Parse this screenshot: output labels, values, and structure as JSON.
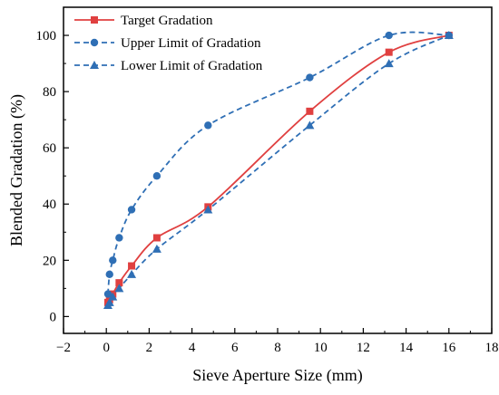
{
  "chart_data": {
    "type": "line",
    "xlabel": "Sieve Aperture Size (mm)",
    "ylabel": "Blended Gradation (%)",
    "xlim": [
      -2,
      18
    ],
    "ylim": [
      -6,
      110
    ],
    "x_ticks": [
      -2,
      0,
      2,
      4,
      6,
      8,
      10,
      12,
      14,
      16,
      18
    ],
    "y_ticks": [
      0,
      20,
      40,
      60,
      80,
      100
    ],
    "x_tick_labels": [
      "−2",
      "0",
      "2",
      "4",
      "6",
      "8",
      "10",
      "12",
      "14",
      "16",
      "18"
    ],
    "y_tick_labels": [
      "0",
      "20",
      "40",
      "60",
      "80",
      "100"
    ],
    "grid": false,
    "legend_position": "top-left",
    "series": [
      {
        "name": "Target Gradation",
        "color": "#e04040",
        "marker": "square",
        "line_style": "solid",
        "x": [
          0.075,
          0.15,
          0.3,
          0.6,
          1.18,
          2.36,
          4.75,
          9.5,
          13.2,
          16
        ],
        "y": [
          5,
          6,
          8,
          12,
          18,
          28,
          39,
          73,
          94,
          100
        ]
      },
      {
        "name": "Upper Limit of Gradation",
        "color": "#2f6fb5",
        "marker": "circle",
        "line_style": "dashed",
        "x": [
          0.075,
          0.15,
          0.3,
          0.6,
          1.18,
          2.36,
          4.75,
          9.5,
          13.2,
          16
        ],
        "y": [
          8,
          15,
          20,
          28,
          38,
          50,
          68,
          85,
          100,
          100
        ]
      },
      {
        "name": "Lower Limit of Gradation",
        "color": "#2f6fb5",
        "marker": "triangle",
        "line_style": "dashed",
        "x": [
          0.075,
          0.15,
          0.3,
          0.6,
          1.18,
          2.36,
          4.75,
          9.5,
          13.2,
          16
        ],
        "y": [
          4,
          5,
          7,
          10,
          15,
          24,
          38,
          68,
          90,
          100
        ]
      }
    ]
  }
}
